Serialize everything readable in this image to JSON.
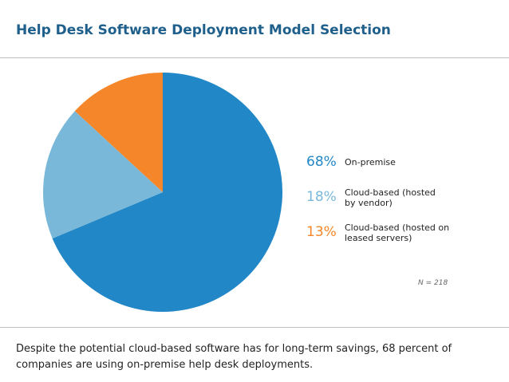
{
  "title": "Help Desk Software Deployment Model Selection",
  "chart_data": {
    "type": "pie",
    "title": "Help Desk Software Deployment Model Selection",
    "start_angle_deg": 0,
    "direction": "clockwise",
    "slices": [
      {
        "label": "On-premise",
        "percent_label": "68%",
        "value": 68,
        "color": "#2187c7"
      },
      {
        "label": "Cloud-based (hosted by vendor)",
        "percent_label": "18%",
        "value": 18,
        "color": "#7ab8da"
      },
      {
        "label": "Cloud-based (hosted on leased servers)",
        "percent_label": "13%",
        "value": 13,
        "color": "#f5872a"
      }
    ],
    "legend_lines": [
      [
        "On-premise"
      ],
      [
        "Cloud-based (hosted",
        "by vendor)"
      ],
      [
        "Cloud-based (hosted on",
        "leased servers)"
      ]
    ],
    "sample_note": "N = 218"
  },
  "caption": "Despite the potential cloud-based software has for long-term savings, 68 percent of companies are using on-premise help desk deployments."
}
